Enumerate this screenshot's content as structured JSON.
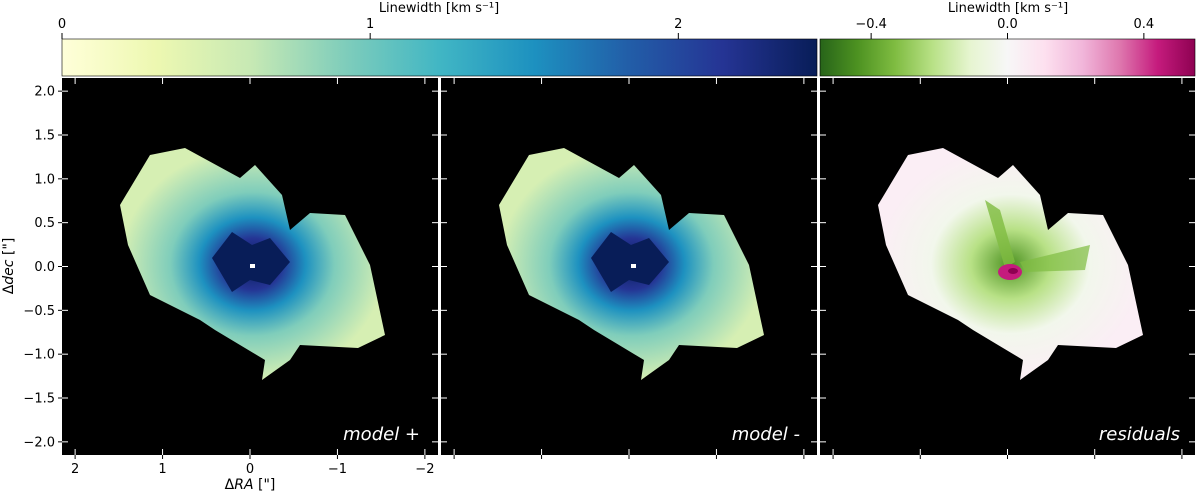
{
  "chart_data": {
    "type": "heatmap",
    "panels": [
      {
        "label": "model +",
        "colormap": "YlGnBu"
      },
      {
        "label": "model -",
        "colormap": "YlGnBu"
      },
      {
        "label": "residuals",
        "colormap": "PiYG_r"
      }
    ],
    "colorbars": [
      {
        "label": "Linewidth [km s⁻¹]",
        "range": [
          0,
          2.45
        ],
        "ticks": [
          0,
          1,
          2
        ],
        "tick_labels": [
          "0",
          "1",
          "2"
        ],
        "colors": [
          "#ffffd9",
          "#edf8b1",
          "#c7e9b4",
          "#7fcdbb",
          "#41b6c4",
          "#1d91c0",
          "#225ea8",
          "#253494",
          "#081d58"
        ]
      },
      {
        "label": "Linewidth [km s⁻¹]",
        "range": [
          -0.55,
          0.55
        ],
        "ticks": [
          -0.4,
          0.0,
          0.4
        ],
        "tick_labels": [
          "−0.4",
          "0.0",
          "0.4"
        ],
        "colors": [
          "#276419",
          "#4d9221",
          "#7fbc41",
          "#b8e186",
          "#e6f5d0",
          "#f7f7f7",
          "#fde0ef",
          "#f1b6da",
          "#de77ae",
          "#c51b7d",
          "#8e0152"
        ]
      }
    ],
    "x_axis": {
      "label_prefix": "Δ",
      "label_var": "RA",
      "label_unit": " [\"]",
      "range": [
        2.15,
        -2.15
      ],
      "ticks": [
        2,
        1,
        0,
        -1,
        -2
      ],
      "tick_labels": [
        "2",
        "1",
        "0",
        "−1",
        "−2"
      ]
    },
    "y_axis": {
      "label_prefix": "Δ",
      "label_var": "dec",
      "label_unit": " [\"]",
      "range": [
        -2.15,
        2.15
      ],
      "ticks": [
        2.0,
        1.5,
        1.0,
        0.5,
        0.0,
        -0.5,
        -1.0,
        -1.5,
        -2.0
      ],
      "tick_labels": [
        "2.0",
        "1.5",
        "1.0",
        "0.5",
        "0.0",
        "−0.5",
        "−1.0",
        "−1.5",
        "−2.0"
      ]
    },
    "background_color": "#000000"
  }
}
